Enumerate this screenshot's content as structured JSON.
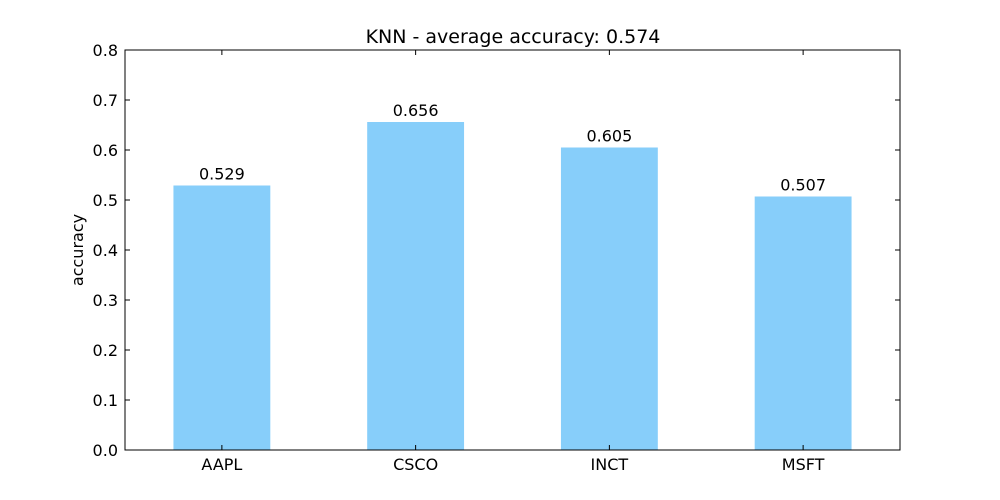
{
  "chart_data": {
    "type": "bar",
    "title": "KNN - average accuracy: 0.574",
    "xlabel": "",
    "ylabel": "accuracy",
    "categories": [
      "AAPL",
      "CSCO",
      "INCT",
      "MSFT"
    ],
    "values": [
      0.529,
      0.656,
      0.605,
      0.507
    ],
    "data_labels": [
      "0.529",
      "0.656",
      "0.605",
      "0.507"
    ],
    "ylim": [
      0,
      0.8
    ],
    "yticks": [
      "0.0",
      "0.1",
      "0.2",
      "0.3",
      "0.4",
      "0.5",
      "0.6",
      "0.7",
      "0.8"
    ],
    "grid": false,
    "legend": "none",
    "bar_color": "#87cefa"
  }
}
